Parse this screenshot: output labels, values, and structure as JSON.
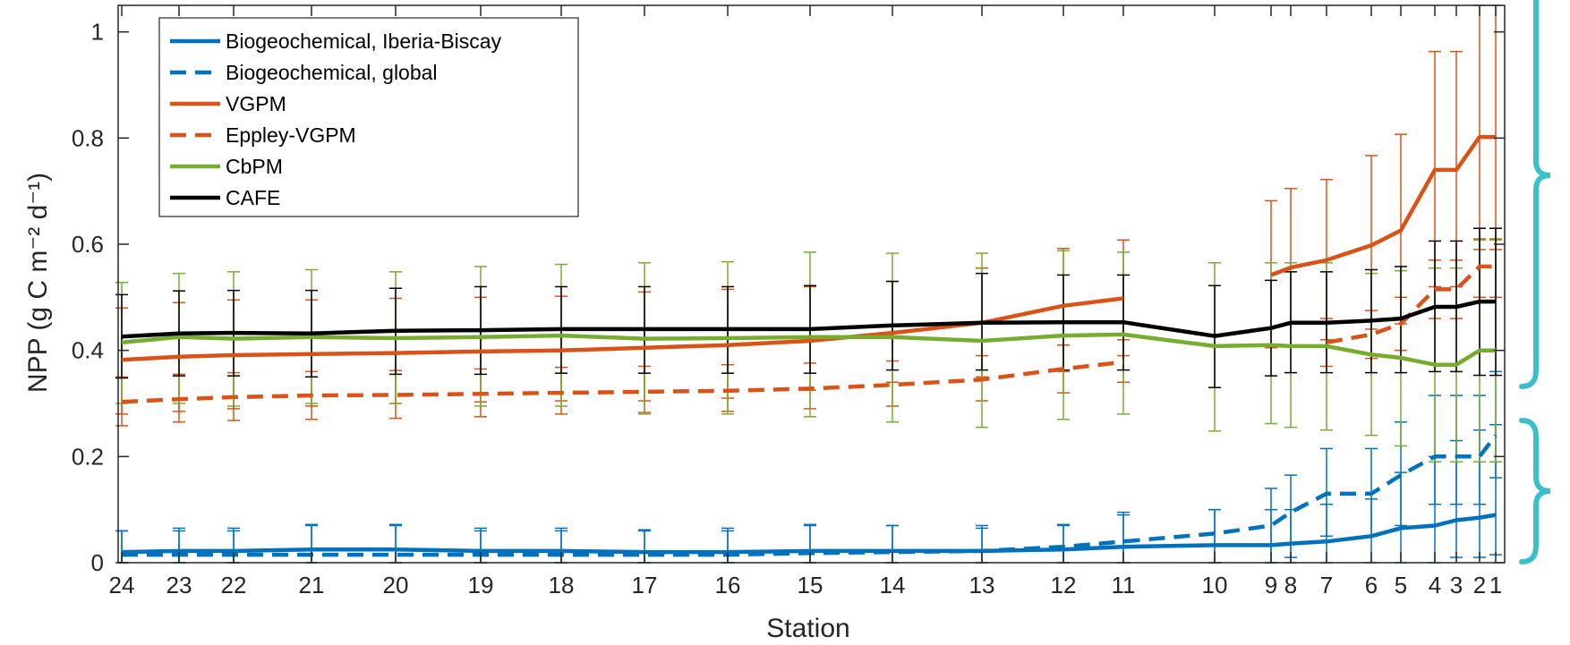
{
  "chart_data": {
    "type": "line",
    "xlabel": "Station",
    "ylabel": "NPP (g C m⁻² d⁻¹)",
    "ylim": [
      0,
      1.05
    ],
    "yticks": [
      "0",
      "0.2",
      "0.4",
      "0.6",
      "0.8",
      "1"
    ],
    "grid": false,
    "legend_position": "top-left",
    "stations": [
      "24",
      "23",
      "22",
      "21",
      "20",
      "19",
      "18",
      "17",
      "16",
      "15",
      "14",
      "13",
      "12",
      "11",
      "10",
      "9",
      "8",
      "7",
      "6",
      "5",
      "4",
      "3",
      "2",
      "1"
    ],
    "series": [
      {
        "name": "Biogeochemical, Iberia-Biscay",
        "color": "#0072BD",
        "dash": "solid",
        "values": [
          0.02,
          0.022,
          0.022,
          0.025,
          0.025,
          0.022,
          0.022,
          0.02,
          0.02,
          0.022,
          0.022,
          0.022,
          0.025,
          0.03,
          0.033,
          0.033,
          0.036,
          0.04,
          0.05,
          0.065,
          0.07,
          0.08,
          0.085,
          0.09
        ],
        "err_low": [
          0.0,
          0.0,
          0.0,
          0.0,
          0.0,
          0.0,
          0.0,
          0.0,
          0.0,
          0.0,
          0.0,
          0.0,
          0.0,
          0.0,
          0.0,
          0.0,
          0.0,
          0.0,
          0.0,
          0.0,
          0.0,
          0.01,
          0.01,
          0.015
        ],
        "err_high": [
          0.06,
          0.065,
          0.065,
          0.072,
          0.072,
          0.065,
          0.065,
          0.062,
          0.065,
          0.072,
          0.07,
          0.07,
          0.072,
          0.09,
          0.1,
          0.1,
          0.1,
          0.11,
          0.12,
          0.17,
          0.2,
          0.23,
          0.25,
          0.26
        ]
      },
      {
        "name": "Biogeochemical, global",
        "color": "#0072BD",
        "dash": "dashed",
        "values": [
          0.015,
          0.015,
          0.015,
          0.015,
          0.015,
          0.015,
          0.015,
          0.015,
          0.015,
          0.018,
          0.02,
          0.022,
          0.03,
          0.04,
          0.055,
          0.07,
          0.095,
          0.13,
          0.13,
          0.165,
          0.2,
          0.2,
          0.2,
          0.24
        ],
        "err_low": [
          0.0,
          0.0,
          0.0,
          0.0,
          0.0,
          0.0,
          0.0,
          0.0,
          0.0,
          0.0,
          0.0,
          0.0,
          0.0,
          0.0,
          0.0,
          0.0,
          0.01,
          0.05,
          0.05,
          0.07,
          0.11,
          0.11,
          0.11,
          0.16
        ],
        "err_high": [
          0.06,
          0.06,
          0.06,
          0.07,
          0.07,
          0.06,
          0.06,
          0.06,
          0.06,
          0.07,
          0.07,
          0.065,
          0.07,
          0.095,
          0.1,
          0.14,
          0.165,
          0.215,
          0.215,
          0.265,
          0.315,
          0.315,
          0.315,
          0.36
        ]
      },
      {
        "name": "VGPM",
        "color": "#D95319",
        "dash": "solid",
        "values": [
          0.382,
          0.388,
          0.391,
          0.393,
          0.395,
          0.398,
          0.4,
          0.405,
          0.41,
          0.418,
          0.433,
          0.452,
          0.484,
          0.498,
          null,
          0.542,
          0.556,
          0.57,
          0.598,
          0.626,
          0.74,
          0.74,
          0.802,
          0.802
        ],
        "err_low": [
          0.28,
          0.285,
          0.29,
          0.295,
          0.3,
          0.303,
          0.305,
          0.305,
          0.31,
          0.325,
          0.34,
          0.35,
          0.36,
          0.39,
          null,
          0.405,
          0.41,
          0.42,
          0.44,
          0.45,
          0.52,
          0.52,
          0.59,
          0.59
        ],
        "err_high": [
          0.48,
          0.49,
          0.495,
          0.495,
          0.498,
          0.5,
          0.502,
          0.51,
          0.515,
          0.52,
          0.53,
          0.555,
          0.592,
          0.608,
          null,
          0.682,
          0.705,
          0.722,
          0.767,
          0.807,
          0.963,
          0.963,
          1.05,
          1.05
        ]
      },
      {
        "name": "Eppley-VGPM",
        "color": "#D95319",
        "dash": "dashed",
        "values": [
          0.303,
          0.308,
          0.312,
          0.315,
          0.316,
          0.318,
          0.32,
          0.322,
          0.324,
          0.328,
          0.335,
          0.345,
          0.365,
          0.378,
          null,
          null,
          null,
          0.415,
          0.43,
          0.45,
          0.515,
          0.515,
          0.558,
          0.558
        ],
        "err_low": [
          0.258,
          0.265,
          0.268,
          0.27,
          0.272,
          0.275,
          0.28,
          0.283,
          0.285,
          0.29,
          0.295,
          0.305,
          0.32,
          0.34,
          null,
          null,
          null,
          0.37,
          0.385,
          0.4,
          0.46,
          0.46,
          0.5,
          0.5
        ],
        "err_high": [
          0.35,
          0.355,
          0.358,
          0.36,
          0.362,
          0.365,
          0.368,
          0.37,
          0.373,
          0.376,
          0.38,
          0.39,
          0.41,
          0.42,
          null,
          null,
          null,
          0.46,
          0.475,
          0.5,
          0.57,
          0.57,
          0.61,
          0.61
        ]
      },
      {
        "name": "CbPM",
        "color": "#77AC30",
        "dash": "solid",
        "values": [
          0.415,
          0.425,
          0.422,
          0.425,
          0.423,
          0.425,
          0.428,
          0.422,
          0.423,
          0.425,
          0.425,
          0.418,
          0.428,
          0.43,
          0.408,
          0.41,
          0.408,
          0.408,
          0.392,
          0.386,
          0.373,
          0.373,
          0.4,
          0.4
        ],
        "err_low": [
          0.3,
          0.3,
          0.295,
          0.3,
          0.3,
          0.295,
          0.295,
          0.28,
          0.28,
          0.275,
          0.265,
          0.255,
          0.27,
          0.28,
          0.248,
          0.262,
          0.255,
          0.25,
          0.24,
          0.22,
          0.19,
          0.19,
          0.19,
          0.19
        ],
        "err_high": [
          0.528,
          0.545,
          0.548,
          0.552,
          0.548,
          0.558,
          0.562,
          0.565,
          0.567,
          0.585,
          0.583,
          0.583,
          0.588,
          0.585,
          0.565,
          0.565,
          0.565,
          0.565,
          0.545,
          0.55,
          0.555,
          0.555,
          0.608,
          0.608
        ]
      },
      {
        "name": "CAFE",
        "color": "#000000",
        "dash": "solid",
        "values": [
          0.426,
          0.432,
          0.433,
          0.432,
          0.437,
          0.438,
          0.44,
          0.44,
          0.44,
          0.44,
          0.447,
          0.452,
          0.453,
          0.453,
          0.427,
          0.442,
          0.452,
          0.452,
          0.456,
          0.46,
          0.482,
          0.482,
          0.492,
          0.492
        ],
        "err_low": [
          0.348,
          0.352,
          0.352,
          0.35,
          0.355,
          0.355,
          0.357,
          0.357,
          0.357,
          0.357,
          0.363,
          0.363,
          0.363,
          0.363,
          0.33,
          0.352,
          0.358,
          0.358,
          0.358,
          0.358,
          0.36,
          0.36,
          0.353,
          0.353
        ],
        "err_high": [
          0.505,
          0.512,
          0.513,
          0.513,
          0.517,
          0.52,
          0.52,
          0.52,
          0.52,
          0.522,
          0.53,
          0.545,
          0.542,
          0.542,
          0.522,
          0.532,
          0.548,
          0.548,
          0.552,
          0.558,
          0.606,
          0.606,
          0.63,
          0.63
        ]
      }
    ],
    "brackets_color": "#3BBFC8"
  }
}
